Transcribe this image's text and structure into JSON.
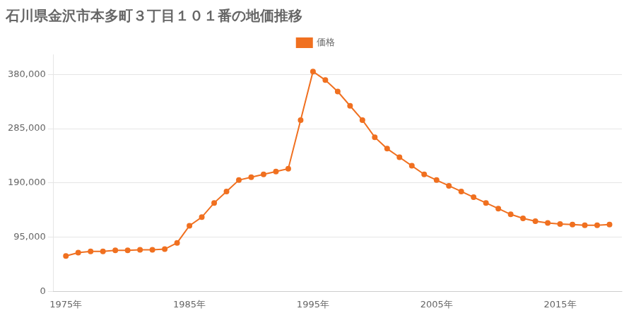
{
  "chart_data": {
    "type": "line",
    "title": "石川県金沢市本多町３丁目１０１番の地価推移",
    "x": [
      1975,
      1976,
      1977,
      1978,
      1979,
      1980,
      1981,
      1982,
      1983,
      1984,
      1985,
      1986,
      1987,
      1988,
      1989,
      1990,
      1991,
      1992,
      1993,
      1994,
      1995,
      1996,
      1997,
      1998,
      1999,
      2000,
      2001,
      2002,
      2003,
      2004,
      2005,
      2006,
      2007,
      2008,
      2009,
      2010,
      2011,
      2012,
      2013,
      2014,
      2015,
      2016,
      2017,
      2018,
      2019
    ],
    "series": [
      {
        "name": "価格",
        "color": "#f07020",
        "marker": "circle",
        "values": [
          62000,
          68000,
          70000,
          70000,
          72000,
          72000,
          73000,
          73000,
          74000,
          85000,
          115000,
          130000,
          155000,
          175000,
          195000,
          200000,
          205000,
          210000,
          215000,
          300000,
          385000,
          370000,
          350000,
          325000,
          300000,
          270000,
          250000,
          235000,
          220000,
          205000,
          195000,
          185000,
          175000,
          165000,
          155000,
          145000,
          135000,
          128000,
          123000,
          120000,
          118000,
          117000,
          116000,
          116000,
          117000
        ]
      }
    ],
    "xlim": [
      1974,
      2020
    ],
    "xticks": [
      {
        "value": 1975,
        "label": "1975年"
      },
      {
        "value": 1985,
        "label": "1985年"
      },
      {
        "value": 1995,
        "label": "1995年"
      },
      {
        "value": 2005,
        "label": "2005年"
      },
      {
        "value": 2015,
        "label": "2015年"
      }
    ],
    "ylim": [
      0,
      415000
    ],
    "yticks": [
      0,
      {
        "value": 95000,
        "label": "95,000"
      },
      {
        "value": 190000,
        "label": "190,000"
      },
      {
        "value": 285000,
        "label": "285,000"
      },
      {
        "value": 380000,
        "label": "380,000"
      }
    ],
    "grid": "y",
    "legend": "top"
  }
}
